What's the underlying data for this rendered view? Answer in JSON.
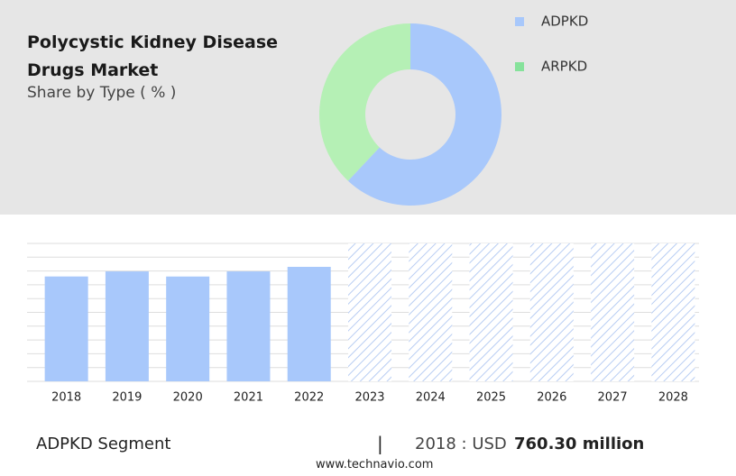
{
  "chart_data": [
    {
      "type": "pie",
      "title": "Polycystic Kidney Disease Drugs Market",
      "subtitle": "Share by Type ( % )",
      "categories": [
        "ADPKD",
        "ARPKD"
      ],
      "values": [
        62,
        38
      ],
      "colors": [
        "#a8c8fb",
        "#b5f0b5"
      ],
      "legend_colors": [
        "#a8c8fb",
        "#86e29b"
      ]
    },
    {
      "type": "bar",
      "categories": [
        "2018",
        "2019",
        "2020",
        "2021",
        "2022",
        "2023",
        "2024",
        "2025",
        "2026",
        "2027",
        "2028"
      ],
      "values": [
        760.3,
        797,
        760,
        797,
        830,
        null,
        null,
        null,
        null,
        null,
        null
      ],
      "color": "#a8c8fb",
      "ylim": [
        0,
        1000
      ],
      "yticks": [
        0,
        100,
        200,
        300,
        400,
        500,
        600,
        700,
        800,
        900,
        1000
      ],
      "grid": true
    }
  ],
  "footer": {
    "segment": "ADPKD Segment",
    "separator": "|",
    "year_label": "2018 : USD",
    "value_label": "760.30 million",
    "source": "www.technavio.com"
  }
}
